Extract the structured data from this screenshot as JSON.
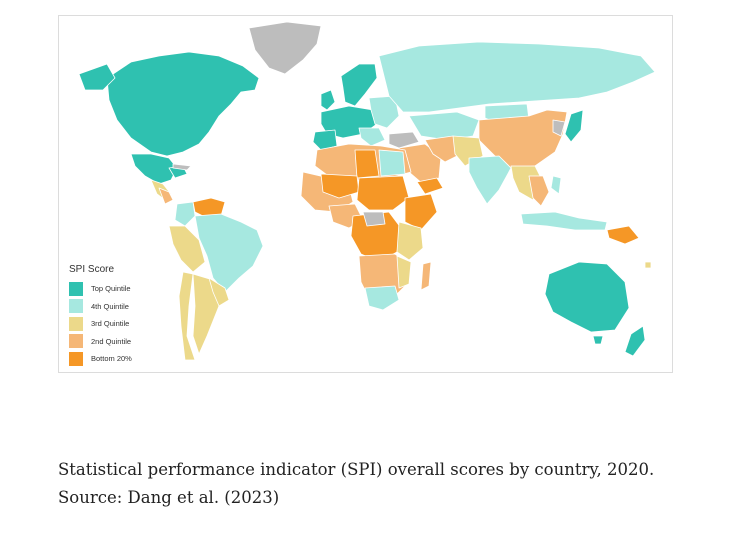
{
  "legend": {
    "title": "SPI Score",
    "items": [
      {
        "label": "Top Quintile",
        "color": "#2fc1b0"
      },
      {
        "label": "4th Quintile",
        "color": "#a6e8e0"
      },
      {
        "label": "3rd Quintile",
        "color": "#ecd98a"
      },
      {
        "label": "2nd Quintile",
        "color": "#f5b777"
      },
      {
        "label": "Bottom 20%",
        "color": "#f59726"
      }
    ]
  },
  "no_data_color": "#bdbdbd",
  "caption": {
    "line1": "Statistical performance indicator (SPI) overall scores by country, 2020.",
    "line2": "Source: Dang et al. (2023)"
  }
}
